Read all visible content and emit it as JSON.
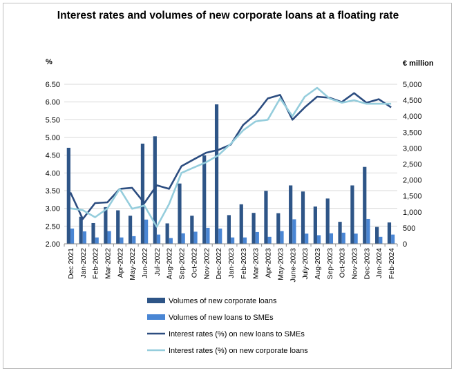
{
  "chart_data": {
    "type": "bar",
    "title": "Interest rates and volumes of new corporate loans at a floating rate",
    "ylabel_left": "%",
    "ylabel_right": "€ million",
    "ylim_left": [
      2.0,
      6.5
    ],
    "ylim_right": [
      0,
      5000
    ],
    "yticks_left": [
      "6.50",
      "6.00",
      "5.50",
      "5.00",
      "4.50",
      "4.00",
      "3.50",
      "3.00",
      "2.50",
      "2.00"
    ],
    "yticks_right": [
      "5,000",
      "4,500",
      "4,000",
      "3,500",
      "3,000",
      "2,500",
      "2,000",
      "1,500",
      "1,000",
      "500",
      "0"
    ],
    "grid": true,
    "legend_position": "bottom",
    "categories": [
      "Dec 2021",
      "Jan-2022",
      "Feb-2022",
      "Mar-2022",
      "Apr-2022",
      "May-2022",
      "Jun-2022",
      "Jul-2022",
      "Aug-2022",
      "Sep-2022",
      "Oct-2022",
      "Nov-2022",
      "Dec-2022",
      "Jan-2023",
      "Feb-2023",
      "Mar-2023",
      "Apr-2023",
      "May-2023",
      "June-2023",
      "July-2023",
      "Aug-2023",
      "Sep-2023",
      "Oct-2023",
      "Nov-2023",
      "Dec-2023",
      "Jan-2024",
      "Feb-2024"
    ],
    "series": [
      {
        "name": "Volumes of new corporate loans",
        "kind": "bar",
        "axis": "right",
        "color": "#2e5587",
        "values": [
          3010,
          850,
          650,
          1150,
          1050,
          880,
          3140,
          3370,
          640,
          1890,
          880,
          2770,
          4370,
          900,
          1240,
          970,
          1660,
          960,
          1830,
          1640,
          1170,
          1420,
          690,
          1830,
          2410,
          530,
          670
        ]
      },
      {
        "name": "Volumes of new loans to SMEs",
        "kind": "bar",
        "axis": "right",
        "color": "#4a86d4",
        "values": [
          480,
          390,
          200,
          400,
          200,
          240,
          760,
          290,
          180,
          330,
          380,
          500,
          480,
          200,
          200,
          370,
          220,
          400,
          770,
          320,
          270,
          330,
          350,
          320,
          780,
          220,
          290
        ]
      },
      {
        "name": "Interest rates (%) on new loans to SMEs",
        "kind": "line",
        "axis": "left",
        "color": "#2c4d80",
        "values": [
          3.45,
          2.7,
          3.15,
          3.17,
          3.55,
          3.58,
          3.15,
          3.65,
          3.55,
          4.19,
          4.38,
          4.57,
          4.65,
          4.8,
          5.35,
          5.65,
          6.1,
          6.2,
          5.5,
          5.85,
          6.15,
          6.12,
          6.0,
          6.25,
          5.98,
          6.08,
          5.85
        ]
      },
      {
        "name": "Interest rates (%) on new corporate loans",
        "kind": "line",
        "axis": "left",
        "color": "#95cddc",
        "values": [
          3.0,
          2.95,
          2.75,
          3.0,
          3.55,
          2.99,
          3.08,
          2.48,
          3.12,
          4.0,
          4.15,
          4.3,
          4.5,
          4.82,
          5.2,
          5.45,
          5.5,
          6.1,
          5.6,
          6.15,
          6.4,
          6.1,
          5.98,
          6.05,
          5.95,
          5.95,
          5.95
        ]
      }
    ]
  }
}
